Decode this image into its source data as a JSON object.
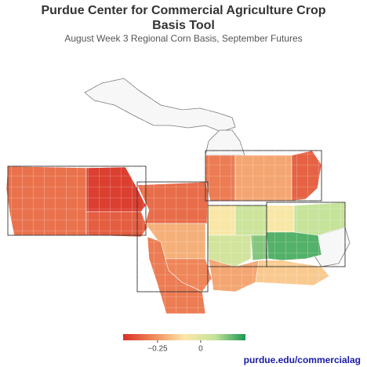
{
  "header": {
    "title": "Purdue Center for Commercial Agriculture Crop Basis Tool",
    "subtitle": "August Week 3 Regional Corn Basis, September Futures"
  },
  "map": {
    "regions": {
      "values": [
        -0.32,
        -0.42,
        -0.36,
        -0.33,
        -0.2,
        -0.28,
        -0.3,
        -0.08,
        0.06,
        0.04,
        0.15,
        -0.08,
        0.2,
        0.08,
        -0.22,
        -0.15,
        -0.3,
        -0.22,
        -0.35
      ]
    },
    "colorbar": {
      "range": [
        -0.45,
        0.26
      ],
      "colors": [
        "#d73027",
        "#f08a5b",
        "#fde7a8",
        "#c5e39a",
        "#1a9850"
      ],
      "ticks": [
        {
          "value": -0.25,
          "label": "−0.25"
        },
        0
      ]
    }
  },
  "footer": {
    "link": "purdue.edu/commercialag"
  }
}
